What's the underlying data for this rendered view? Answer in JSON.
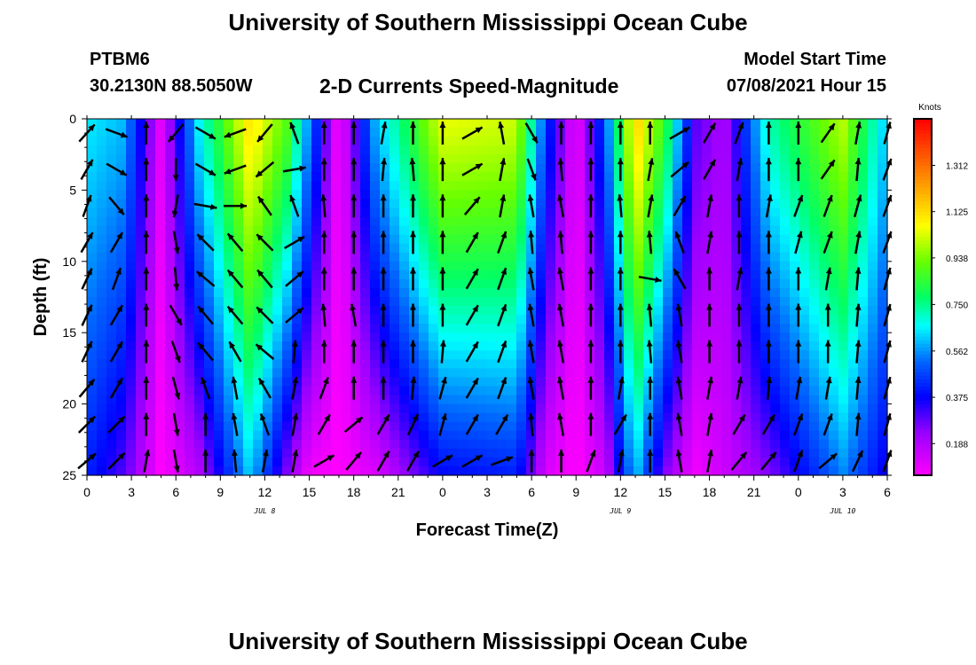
{
  "header": {
    "title": "University of Southern Mississippi Ocean Cube",
    "station_id": "PTBM6",
    "station_coords": "30.2130N  88.5050W",
    "subtitle": "2-D Currents Speed-Magnitude",
    "model_start_label": "Model Start Time",
    "model_start_value": "07/08/2021 Hour 15"
  },
  "footer": {
    "title": "University of Southern Mississippi Ocean Cube"
  },
  "chart_data": {
    "type": "heatmap",
    "title": "2-D Currents Speed-Magnitude",
    "xlabel": "Forecast Time(Z)",
    "ylabel": "Depth (ft)",
    "x_range_hours": [
      0,
      54
    ],
    "x_tick_labels": [
      "0",
      "3",
      "6",
      "9",
      "12",
      "15",
      "18",
      "21",
      "0",
      "3",
      "6",
      "9",
      "12",
      "15",
      "18",
      "21",
      "0",
      "3",
      "6"
    ],
    "date_labels": [
      {
        "text": "JUL 8",
        "hour": 12
      },
      {
        "text": "JUL 9",
        "hour": 36
      },
      {
        "text": "JUL 10",
        "hour": 51
      }
    ],
    "y_range": [
      0,
      25
    ],
    "y_ticks": [
      0,
      5,
      10,
      15,
      20,
      25
    ],
    "colorbar": {
      "unit": "Knots",
      "range": [
        0.06,
        1.5
      ],
      "tick_labels": [
        "1.312",
        "1.125",
        "0.938",
        "0.750",
        "0.562",
        "0.375",
        "0.188"
      ],
      "tick_values": [
        1.312,
        1.125,
        0.938,
        0.75,
        0.562,
        0.375,
        0.188
      ],
      "colors": [
        "#ff00ff",
        "#9900ff",
        "#0000ff",
        "#0066ff",
        "#00ffff",
        "#00ff66",
        "#66ff00",
        "#ffff00",
        "#ffaa00",
        "#ff5500",
        "#ff0000"
      ],
      "color_stops": [
        0.0,
        0.12,
        0.22,
        0.32,
        0.42,
        0.5,
        0.6,
        0.7,
        0.8,
        0.9,
        1.0
      ]
    },
    "speed_profile_keyframes": [
      {
        "hour": 0,
        "top": 0.65,
        "bottom": 0.42
      },
      {
        "hour": 2.5,
        "top": 0.6,
        "bottom": 0.3
      },
      {
        "hour": 5,
        "top": 0.1,
        "bottom": 0.06
      },
      {
        "hour": 7.5,
        "top": 0.65,
        "bottom": 0.18
      },
      {
        "hour": 11,
        "top": 1.12,
        "bottom": 0.62
      },
      {
        "hour": 13.5,
        "top": 0.9,
        "bottom": 0.25
      },
      {
        "hour": 15,
        "top": 0.55,
        "bottom": 0.08
      },
      {
        "hour": 17,
        "top": 0.06,
        "bottom": 0.06
      },
      {
        "hour": 19.5,
        "top": 0.6,
        "bottom": 0.12
      },
      {
        "hour": 24,
        "top": 1.05,
        "bottom": 0.38
      },
      {
        "hour": 29,
        "top": 1.02,
        "bottom": 0.42
      },
      {
        "hour": 31,
        "top": 0.45,
        "bottom": 0.12
      },
      {
        "hour": 33,
        "top": 0.08,
        "bottom": 0.06
      },
      {
        "hour": 35,
        "top": 0.5,
        "bottom": 0.15
      },
      {
        "hour": 37,
        "top": 1.15,
        "bottom": 0.62
      },
      {
        "hour": 39,
        "top": 0.85,
        "bottom": 0.25
      },
      {
        "hour": 41,
        "top": 0.3,
        "bottom": 0.08
      },
      {
        "hour": 43,
        "top": 0.2,
        "bottom": 0.15
      },
      {
        "hour": 46,
        "top": 0.72,
        "bottom": 0.25
      },
      {
        "hour": 51,
        "top": 1.0,
        "bottom": 0.55
      },
      {
        "hour": 54,
        "top": 0.6,
        "bottom": 0.35
      }
    ],
    "arrow_angles_deg": [
      [
        48,
        -20,
        90,
        -130,
        -30,
        -160,
        -130,
        110,
        90,
        90,
        80,
        90,
        90,
        30,
        100,
        -60,
        90,
        90,
        90,
        90,
        30,
        60,
        70,
        90,
        90,
        55,
        80,
        75
      ],
      [
        60,
        -30,
        90,
        -90,
        -30,
        -160,
        -140,
        10,
        90,
        90,
        85,
        95,
        90,
        30,
        80,
        -70,
        95,
        90,
        90,
        80,
        40,
        60,
        80,
        90,
        90,
        55,
        85,
        70
      ],
      [
        70,
        -50,
        90,
        -100,
        -10,
        0,
        125,
        110,
        95,
        90,
        90,
        90,
        90,
        50,
        80,
        100,
        100,
        90,
        95,
        80,
        60,
        80,
        90,
        80,
        70,
        70,
        75,
        70
      ],
      [
        60,
        60,
        90,
        -80,
        135,
        130,
        135,
        30,
        90,
        90,
        90,
        90,
        90,
        60,
        70,
        95,
        95,
        90,
        90,
        95,
        110,
        80,
        90,
        90,
        75,
        70,
        80,
        70
      ],
      [
        65,
        70,
        90,
        -85,
        140,
        130,
        130,
        40,
        90,
        90,
        90,
        90,
        90,
        60,
        70,
        100,
        100,
        90,
        90,
        -10,
        120,
        90,
        80,
        90,
        90,
        80,
        85,
        75
      ],
      [
        65,
        60,
        90,
        -60,
        130,
        130,
        135,
        40,
        95,
        100,
        90,
        90,
        90,
        60,
        70,
        100,
        100,
        90,
        90,
        95,
        100,
        90,
        90,
        90,
        90,
        90,
        85,
        75
      ],
      [
        65,
        60,
        90,
        -70,
        130,
        120,
        140,
        85,
        90,
        90,
        90,
        90,
        85,
        60,
        70,
        100,
        100,
        90,
        90,
        95,
        100,
        90,
        90,
        90,
        90,
        90,
        85,
        75
      ],
      [
        50,
        60,
        90,
        -75,
        110,
        100,
        120,
        80,
        70,
        90,
        90,
        85,
        75,
        60,
        70,
        100,
        100,
        90,
        80,
        90,
        100,
        80,
        80,
        85,
        80,
        80,
        85,
        75
      ],
      [
        45,
        45,
        90,
        -80,
        90,
        100,
        110,
        80,
        60,
        40,
        60,
        65,
        75,
        60,
        60,
        95,
        100,
        90,
        60,
        90,
        100,
        80,
        60,
        60,
        70,
        70,
        85,
        75
      ],
      [
        40,
        45,
        80,
        -80,
        90,
        95,
        80,
        80,
        30,
        50,
        60,
        60,
        30,
        30,
        20,
        90,
        90,
        70,
        80,
        90,
        100,
        80,
        50,
        50,
        70,
        40,
        65,
        70
      ]
    ]
  }
}
